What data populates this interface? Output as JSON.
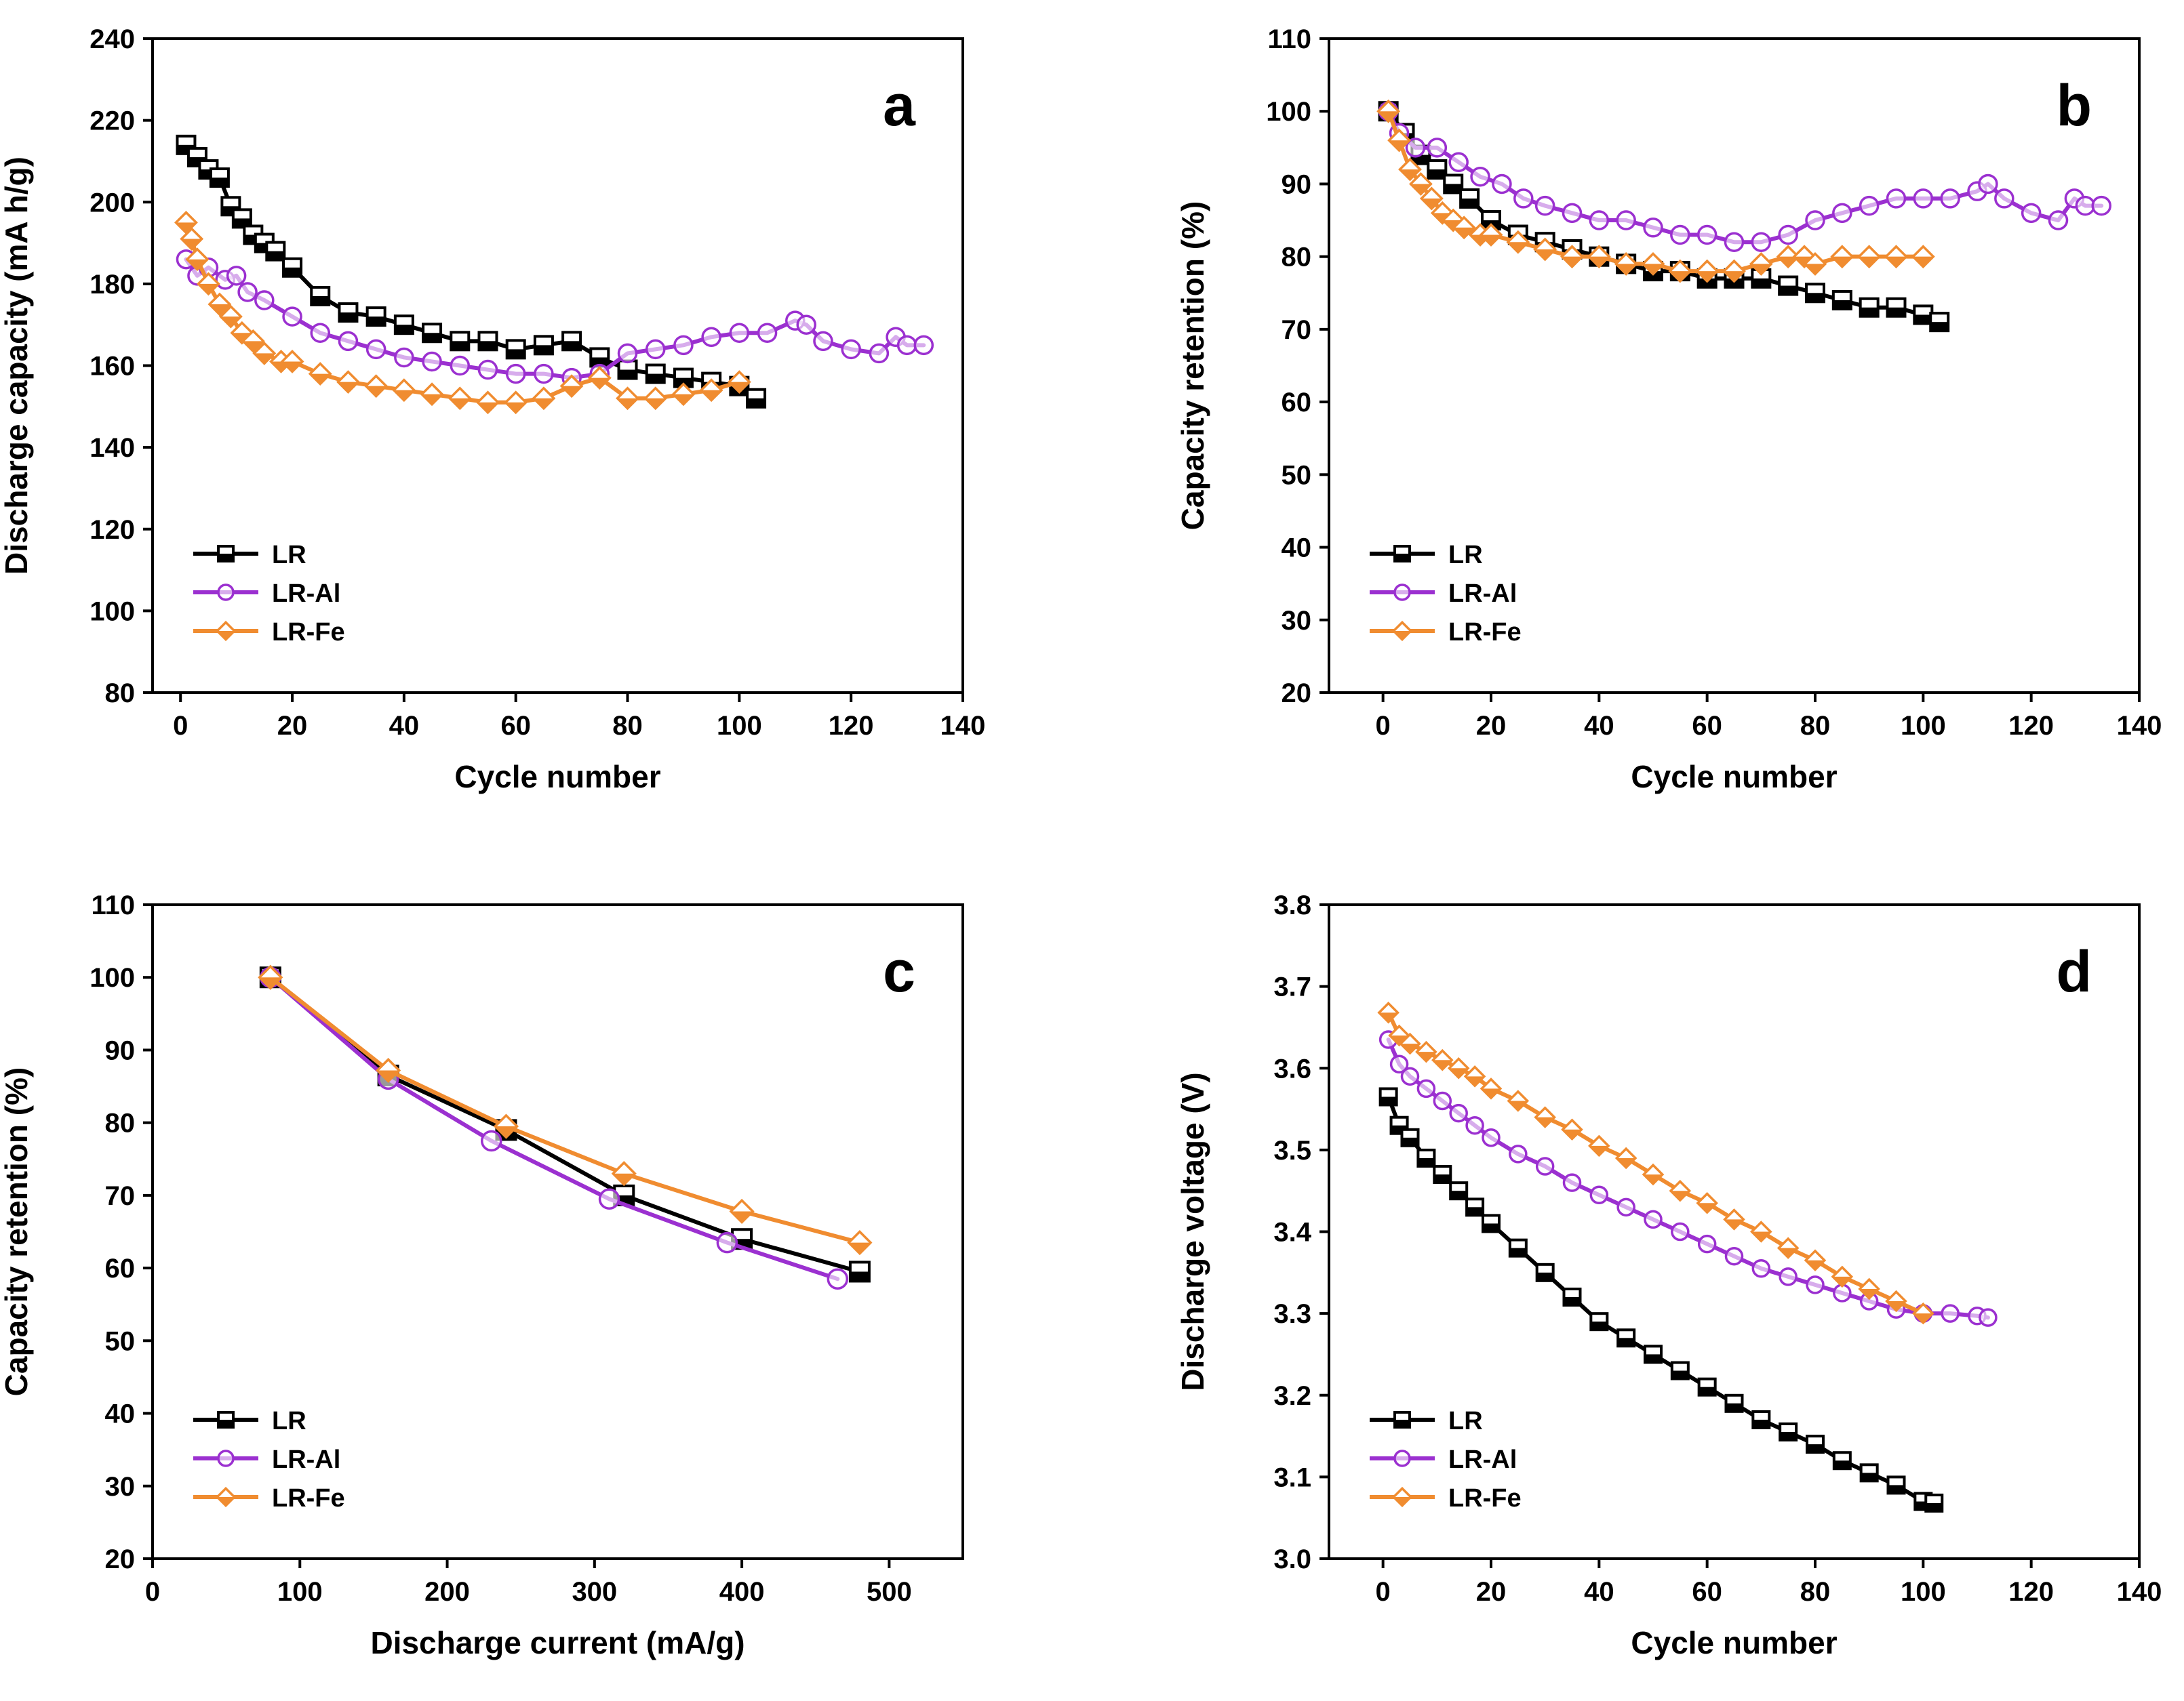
{
  "figure": {
    "colors": {
      "LR": "#000000",
      "LR-Al": "#9b30d0",
      "LR-Fe": "#f08c30"
    },
    "icon_names": {
      "LR": "square-marker-icon",
      "LR-Al": "circle-marker-icon",
      "LR-Fe": "diamond-marker-icon"
    }
  },
  "chart_data": [
    {
      "id": "a",
      "type": "scatter",
      "letter": "a",
      "xlabel": "Cycle number",
      "ylabel": "Discharge capacity (mA h/g)",
      "xlim": [
        -5,
        140
      ],
      "ylim": [
        80,
        240
      ],
      "xticks": [
        0,
        20,
        40,
        60,
        80,
        100,
        120,
        140
      ],
      "yticks": [
        80,
        100,
        120,
        140,
        160,
        180,
        200,
        220,
        240
      ],
      "legend": [
        "LR",
        "LR-Al",
        "LR-Fe"
      ],
      "legend_position": "bottom-left",
      "series": [
        {
          "name": "LR",
          "x": [
            1,
            3,
            5,
            7,
            9,
            11,
            13,
            15,
            17,
            20,
            25,
            30,
            35,
            40,
            45,
            50,
            55,
            60,
            65,
            70,
            75,
            80,
            85,
            90,
            95,
            100,
            103
          ],
          "y": [
            214,
            211,
            208,
            206,
            199,
            196,
            192,
            190,
            188,
            184,
            177,
            173,
            172,
            170,
            168,
            166,
            166,
            164,
            165,
            166,
            162,
            159,
            158,
            157,
            156,
            155,
            152
          ]
        },
        {
          "name": "LR-Al",
          "x": [
            1,
            3,
            5,
            8,
            10,
            12,
            15,
            20,
            25,
            30,
            35,
            40,
            45,
            50,
            55,
            60,
            65,
            70,
            75,
            80,
            85,
            90,
            95,
            100,
            105,
            110,
            112,
            115,
            120,
            125,
            128,
            130,
            133
          ],
          "y": [
            186,
            182,
            184,
            181,
            182,
            178,
            176,
            172,
            168,
            166,
            164,
            162,
            161,
            160,
            159,
            158,
            158,
            157,
            158,
            163,
            164,
            165,
            167,
            168,
            168,
            171,
            170,
            166,
            164,
            163,
            167,
            165,
            165
          ]
        },
        {
          "name": "LR-Fe",
          "x": [
            1,
            2,
            3,
            5,
            7,
            9,
            11,
            13,
            15,
            18,
            20,
            25,
            30,
            35,
            40,
            45,
            50,
            55,
            60,
            65,
            70,
            75,
            80,
            85,
            90,
            95,
            100
          ],
          "y": [
            195,
            191,
            186,
            180,
            175,
            172,
            168,
            166,
            163,
            161,
            161,
            158,
            156,
            155,
            154,
            153,
            152,
            151,
            151,
            152,
            155,
            157,
            152,
            152,
            153,
            154,
            156
          ]
        }
      ]
    },
    {
      "id": "b",
      "type": "scatter",
      "letter": "b",
      "xlabel": "Cycle number",
      "ylabel": "Capacity retention (%)",
      "xlim": [
        -10,
        140
      ],
      "ylim": [
        20,
        110
      ],
      "xticks": [
        0,
        20,
        40,
        60,
        80,
        100,
        120,
        140
      ],
      "yticks": [
        20,
        30,
        40,
        50,
        60,
        70,
        80,
        90,
        100,
        110
      ],
      "legend": [
        "LR",
        "LR-Al",
        "LR-Fe"
      ],
      "legend_position": "bottom-left",
      "series": [
        {
          "name": "LR",
          "x": [
            1,
            4,
            7,
            10,
            13,
            16,
            20,
            25,
            30,
            35,
            40,
            45,
            50,
            55,
            60,
            65,
            70,
            75,
            80,
            85,
            90,
            95,
            100,
            103
          ],
          "y": [
            100,
            97,
            94,
            92,
            90,
            88,
            85,
            83,
            82,
            81,
            80,
            79,
            78,
            78,
            77,
            77,
            77,
            76,
            75,
            74,
            73,
            73,
            72,
            71
          ]
        },
        {
          "name": "LR-Al",
          "x": [
            1,
            3,
            6,
            10,
            14,
            18,
            22,
            26,
            30,
            35,
            40,
            45,
            50,
            55,
            60,
            65,
            70,
            75,
            80,
            85,
            90,
            95,
            100,
            105,
            110,
            112,
            115,
            120,
            125,
            128,
            130,
            133
          ],
          "y": [
            100,
            97,
            95,
            95,
            93,
            91,
            90,
            88,
            87,
            86,
            85,
            85,
            84,
            83,
            83,
            82,
            82,
            83,
            85,
            86,
            87,
            88,
            88,
            88,
            89,
            90,
            88,
            86,
            85,
            88,
            87,
            87
          ]
        },
        {
          "name": "LR-Fe",
          "x": [
            1,
            3,
            5,
            7,
            9,
            11,
            13,
            15,
            18,
            20,
            25,
            30,
            35,
            40,
            45,
            50,
            55,
            60,
            65,
            70,
            75,
            78,
            80,
            85,
            90,
            95,
            100
          ],
          "y": [
            100,
            96,
            92,
            90,
            88,
            86,
            85,
            84,
            83,
            83,
            82,
            81,
            80,
            80,
            79,
            79,
            78,
            78,
            78,
            79,
            80,
            80,
            79,
            80,
            80,
            80,
            80
          ]
        }
      ]
    },
    {
      "id": "c",
      "type": "line",
      "letter": "c",
      "xlabel": "Discharge current (mA/g)",
      "ylabel": "Capacity retention (%)",
      "xlim": [
        0,
        550
      ],
      "ylim": [
        20,
        110
      ],
      "xticks": [
        0,
        100,
        200,
        300,
        400,
        500
      ],
      "yticks": [
        20,
        30,
        40,
        50,
        60,
        70,
        80,
        90,
        100,
        110
      ],
      "legend": [
        "LR",
        "LR-Al",
        "LR-Fe"
      ],
      "legend_position": "bottom-left",
      "series": [
        {
          "name": "LR",
          "x": [
            80,
            160,
            240,
            320,
            400,
            480
          ],
          "y": [
            100,
            86.5,
            79,
            70,
            64,
            59.5
          ]
        },
        {
          "name": "LR-Al",
          "x": [
            80,
            160,
            230,
            310,
            390,
            465
          ],
          "y": [
            100,
            86,
            77.5,
            69.5,
            63.5,
            58.5
          ]
        },
        {
          "name": "LR-Fe",
          "x": [
            80,
            160,
            240,
            320,
            400,
            480
          ],
          "y": [
            100,
            87.2,
            79.5,
            73,
            67.8,
            63.5
          ]
        }
      ]
    },
    {
      "id": "d",
      "type": "scatter",
      "letter": "d",
      "xlabel": "Cycle number",
      "ylabel": "Discharge voltage (V)",
      "xlim": [
        -10,
        140
      ],
      "ylim": [
        3.0,
        3.8
      ],
      "xticks": [
        0,
        20,
        40,
        60,
        80,
        100,
        120,
        140
      ],
      "yticks": [
        3.0,
        3.1,
        3.2,
        3.3,
        3.4,
        3.5,
        3.6,
        3.7,
        3.8
      ],
      "ytick_format": "fixed1",
      "legend": [
        "LR",
        "LR-Al",
        "LR-Fe"
      ],
      "legend_position": "bottom-left",
      "series": [
        {
          "name": "LR",
          "x": [
            1,
            3,
            5,
            8,
            11,
            14,
            17,
            20,
            25,
            30,
            35,
            40,
            45,
            50,
            55,
            60,
            65,
            70,
            75,
            80,
            85,
            90,
            95,
            100,
            102
          ],
          "y": [
            3.565,
            3.53,
            3.515,
            3.49,
            3.47,
            3.45,
            3.43,
            3.41,
            3.38,
            3.35,
            3.32,
            3.29,
            3.27,
            3.25,
            3.23,
            3.21,
            3.19,
            3.17,
            3.155,
            3.14,
            3.12,
            3.105,
            3.09,
            3.07,
            3.068
          ]
        },
        {
          "name": "LR-Al",
          "x": [
            1,
            3,
            5,
            8,
            11,
            14,
            17,
            20,
            25,
            30,
            35,
            40,
            45,
            50,
            55,
            60,
            65,
            70,
            75,
            80,
            85,
            90,
            95,
            100,
            105,
            110,
            112
          ],
          "y": [
            3.635,
            3.605,
            3.59,
            3.575,
            3.56,
            3.545,
            3.53,
            3.515,
            3.495,
            3.48,
            3.46,
            3.445,
            3.43,
            3.415,
            3.4,
            3.385,
            3.37,
            3.355,
            3.345,
            3.335,
            3.325,
            3.315,
            3.305,
            3.3,
            3.3,
            3.297,
            3.295
          ]
        },
        {
          "name": "LR-Fe",
          "x": [
            1,
            3,
            5,
            8,
            11,
            14,
            17,
            20,
            25,
            30,
            35,
            40,
            45,
            50,
            55,
            60,
            65,
            70,
            75,
            80,
            85,
            90,
            95,
            100
          ],
          "y": [
            3.668,
            3.64,
            3.63,
            3.62,
            3.61,
            3.6,
            3.59,
            3.575,
            3.56,
            3.54,
            3.525,
            3.505,
            3.49,
            3.47,
            3.45,
            3.435,
            3.415,
            3.4,
            3.38,
            3.365,
            3.345,
            3.33,
            3.315,
            3.3
          ]
        }
      ]
    }
  ]
}
